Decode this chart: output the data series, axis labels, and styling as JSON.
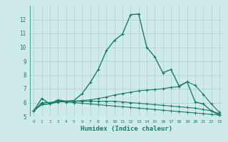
{
  "xlabel": "Humidex (Indice chaleur)",
  "background_color": "#ceeaea",
  "grid_color": "#b0cccc",
  "line_color": "#1a7a6e",
  "xlim": [
    0,
    23
  ],
  "ylim": [
    5,
    13
  ],
  "yticks": [
    5,
    6,
    7,
    8,
    9,
    10,
    11,
    12
  ],
  "xticks": [
    0,
    1,
    2,
    3,
    4,
    5,
    6,
    7,
    8,
    9,
    10,
    11,
    12,
    13,
    14,
    15,
    16,
    17,
    18,
    19,
    20,
    21,
    22,
    23
  ],
  "series": [
    {
      "x": [
        0,
        1,
        2,
        3,
        4,
        5,
        6,
        7,
        8,
        9,
        10,
        11,
        12,
        13,
        14,
        15,
        16,
        17,
        18,
        19,
        20,
        21,
        22,
        23
      ],
      "y": [
        5.4,
        6.3,
        5.9,
        6.2,
        6.1,
        6.15,
        6.65,
        7.45,
        8.4,
        9.75,
        10.5,
        10.95,
        12.35,
        12.4,
        10.0,
        9.3,
        8.15,
        8.4,
        7.2,
        7.5,
        6.05,
        5.9,
        5.4,
        5.1
      ]
    },
    {
      "x": [
        0,
        1,
        2,
        3,
        4,
        5,
        6,
        7,
        8,
        9,
        10,
        11,
        12,
        13,
        14,
        15,
        16,
        17,
        18,
        19,
        20,
        21,
        22,
        23
      ],
      "y": [
        5.4,
        5.9,
        5.9,
        6.1,
        6.05,
        6.1,
        6.15,
        6.2,
        6.3,
        6.4,
        6.55,
        6.65,
        6.75,
        6.85,
        6.9,
        6.95,
        7.0,
        7.1,
        7.15,
        7.5,
        7.25,
        6.6,
        5.9,
        5.3
      ]
    },
    {
      "x": [
        0,
        1,
        2,
        3,
        4,
        5,
        6,
        7,
        8,
        9,
        10,
        11,
        12,
        13,
        14,
        15,
        16,
        17,
        18,
        19,
        20,
        21,
        22,
        23
      ],
      "y": [
        5.4,
        6.0,
        6.0,
        6.1,
        6.1,
        6.1,
        6.1,
        6.1,
        6.1,
        6.1,
        6.1,
        6.05,
        6.0,
        5.95,
        5.9,
        5.85,
        5.8,
        5.75,
        5.7,
        5.65,
        5.6,
        5.5,
        5.4,
        5.2
      ]
    },
    {
      "x": [
        0,
        1,
        2,
        3,
        4,
        5,
        6,
        7,
        8,
        9,
        10,
        11,
        12,
        13,
        14,
        15,
        16,
        17,
        18,
        19,
        20,
        21,
        22,
        23
      ],
      "y": [
        5.4,
        5.85,
        5.9,
        6.05,
        6.05,
        6.0,
        5.95,
        5.9,
        5.85,
        5.8,
        5.75,
        5.7,
        5.65,
        5.6,
        5.55,
        5.5,
        5.45,
        5.4,
        5.35,
        5.3,
        5.25,
        5.2,
        5.15,
        5.1
      ]
    }
  ]
}
